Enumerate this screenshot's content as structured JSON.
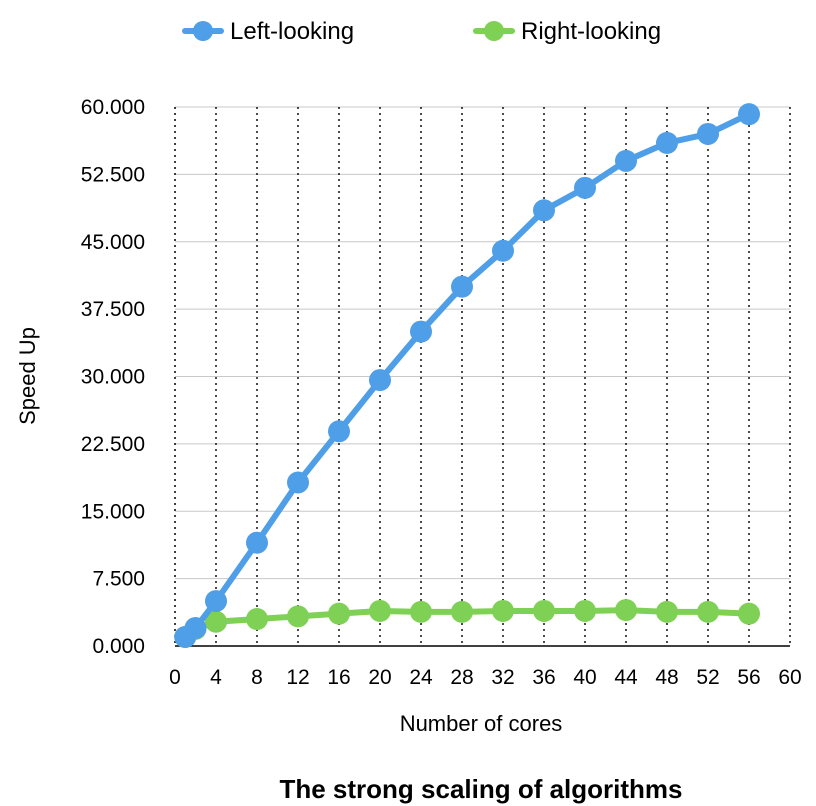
{
  "chart_data": {
    "type": "line",
    "title": "The strong scaling of algorithms",
    "xlabel": "Number of cores",
    "ylabel": "Speed Up",
    "xlim": [
      0,
      60
    ],
    "ylim": [
      0,
      60
    ],
    "x_ticks": [
      0,
      4,
      8,
      12,
      16,
      20,
      24,
      28,
      32,
      36,
      40,
      44,
      48,
      52,
      56,
      60
    ],
    "x_tick_labels": [
      "0",
      "4",
      "8",
      "12",
      "16",
      "20",
      "24",
      "28",
      "32",
      "36",
      "40",
      "44",
      "48",
      "52",
      "56",
      "60"
    ],
    "y_ticks": [
      0,
      7.5,
      15,
      22.5,
      30,
      37.5,
      45,
      52.5,
      60
    ],
    "y_tick_labels": [
      "0.000",
      "7.500",
      "15.000",
      "22.500",
      "30.000",
      "37.500",
      "45.000",
      "52.500",
      "60.000"
    ],
    "grid": {
      "horizontal": "solid",
      "vertical": "dotted"
    },
    "legend_position": "top-center",
    "series": [
      {
        "name": "Left-looking",
        "color": "#4f9ee8",
        "x": [
          1,
          2,
          4,
          8,
          12,
          16,
          20,
          24,
          28,
          32,
          36,
          40,
          44,
          48,
          52,
          56
        ],
        "values": [
          1.0,
          2.0,
          5.0,
          11.5,
          18.2,
          23.9,
          29.6,
          35.0,
          40.0,
          44.0,
          48.5,
          51.0,
          54.0,
          56.0,
          57.0,
          59.2
        ]
      },
      {
        "name": "Right-looking",
        "color": "#7fd155",
        "x": [
          1,
          2,
          4,
          8,
          12,
          16,
          20,
          24,
          28,
          32,
          36,
          40,
          44,
          48,
          52,
          56
        ],
        "values": [
          1.0,
          1.9,
          2.7,
          3.0,
          3.3,
          3.6,
          3.9,
          3.8,
          3.8,
          3.9,
          3.9,
          3.9,
          4.0,
          3.8,
          3.8,
          3.6
        ]
      }
    ]
  }
}
